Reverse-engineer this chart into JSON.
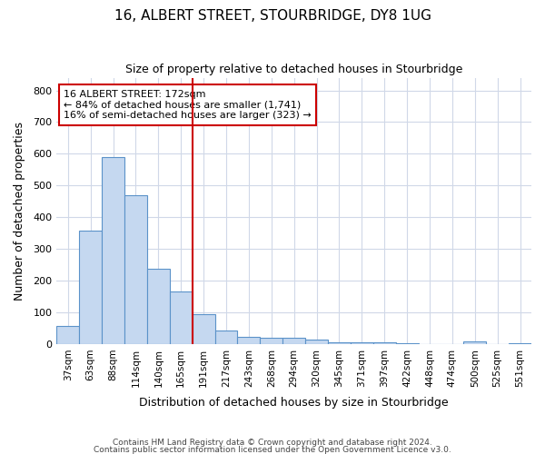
{
  "title": "16, ALBERT STREET, STOURBRIDGE, DY8 1UG",
  "subtitle": "Size of property relative to detached houses in Stourbridge",
  "xlabel": "Distribution of detached houses by size in Stourbridge",
  "ylabel": "Number of detached properties",
  "bar_labels": [
    "37sqm",
    "63sqm",
    "88sqm",
    "114sqm",
    "140sqm",
    "165sqm",
    "191sqm",
    "217sqm",
    "243sqm",
    "268sqm",
    "294sqm",
    "320sqm",
    "345sqm",
    "371sqm",
    "397sqm",
    "422sqm",
    "448sqm",
    "474sqm",
    "500sqm",
    "525sqm",
    "551sqm"
  ],
  "bar_values": [
    57,
    357,
    590,
    469,
    237,
    165,
    95,
    44,
    22,
    20,
    20,
    13,
    6,
    5,
    5,
    4,
    1,
    1,
    8,
    1,
    3
  ],
  "ylim": [
    0,
    840
  ],
  "yticks": [
    0,
    100,
    200,
    300,
    400,
    500,
    600,
    700,
    800
  ],
  "bar_color": "#c5d8f0",
  "bar_edge_color": "#5b92c9",
  "vline_x": 5.5,
  "vline_color": "#cc0000",
  "annotation_text": "16 ALBERT STREET: 172sqm\n← 84% of detached houses are smaller (1,741)\n16% of semi-detached houses are larger (323) →",
  "annotation_box_color": "white",
  "annotation_box_edge_color": "#cc0000",
  "bg_color": "#ffffff",
  "plot_bg_color": "#ffffff",
  "grid_color": "#d0d8e8",
  "footer1": "Contains HM Land Registry data © Crown copyright and database right 2024.",
  "footer2": "Contains public sector information licensed under the Open Government Licence v3.0."
}
